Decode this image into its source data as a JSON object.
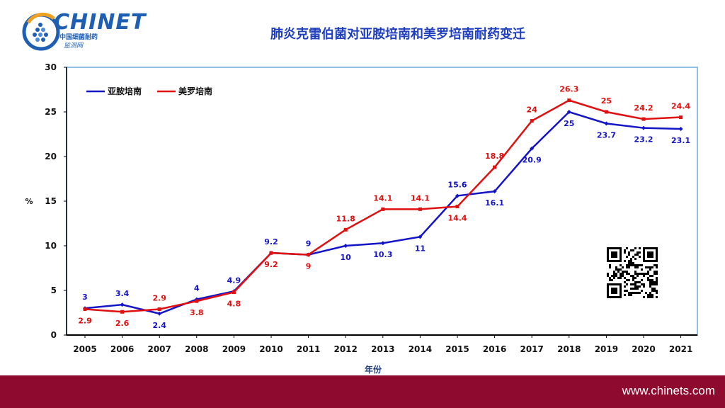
{
  "logo": {
    "word": "CHINET",
    "sub1": "中国细菌耐药",
    "sub2": "监测网"
  },
  "footer": {
    "url": "www.chinets.com"
  },
  "colors": {
    "series1": "#1515c8",
    "series2": "#e01010",
    "axis_box": "#8fc1e8",
    "footer": "#8e0a2e"
  },
  "chart_data": {
    "type": "line",
    "title": "肺炎克雷伯菌对亚胺培南和美罗培南耐药变迁",
    "xlabel": "年份",
    "ylabel": "%",
    "ylim": [
      0,
      30
    ],
    "yticks": [
      0,
      5,
      10,
      15,
      20,
      25,
      30
    ],
    "categories": [
      "2005",
      "2006",
      "2007",
      "2008",
      "2009",
      "2010",
      "2011",
      "2012",
      "2013",
      "2014",
      "2015",
      "2016",
      "2017",
      "2018",
      "2019",
      "2020",
      "2021"
    ],
    "legend_position": "top-left",
    "grid": false,
    "series": [
      {
        "name": "亚胺培南",
        "values": [
          3,
          3.4,
          2.4,
          4,
          4.9,
          9.2,
          9,
          10,
          10.3,
          11,
          15.6,
          16.1,
          20.9,
          25,
          23.7,
          23.2,
          23.1
        ]
      },
      {
        "name": "美罗培南",
        "values": [
          2.9,
          2.6,
          2.9,
          3.8,
          4.8,
          9.2,
          9,
          11.8,
          14.1,
          14.1,
          14.4,
          18.8,
          24,
          26.3,
          25,
          24.2,
          24.4
        ]
      }
    ]
  }
}
